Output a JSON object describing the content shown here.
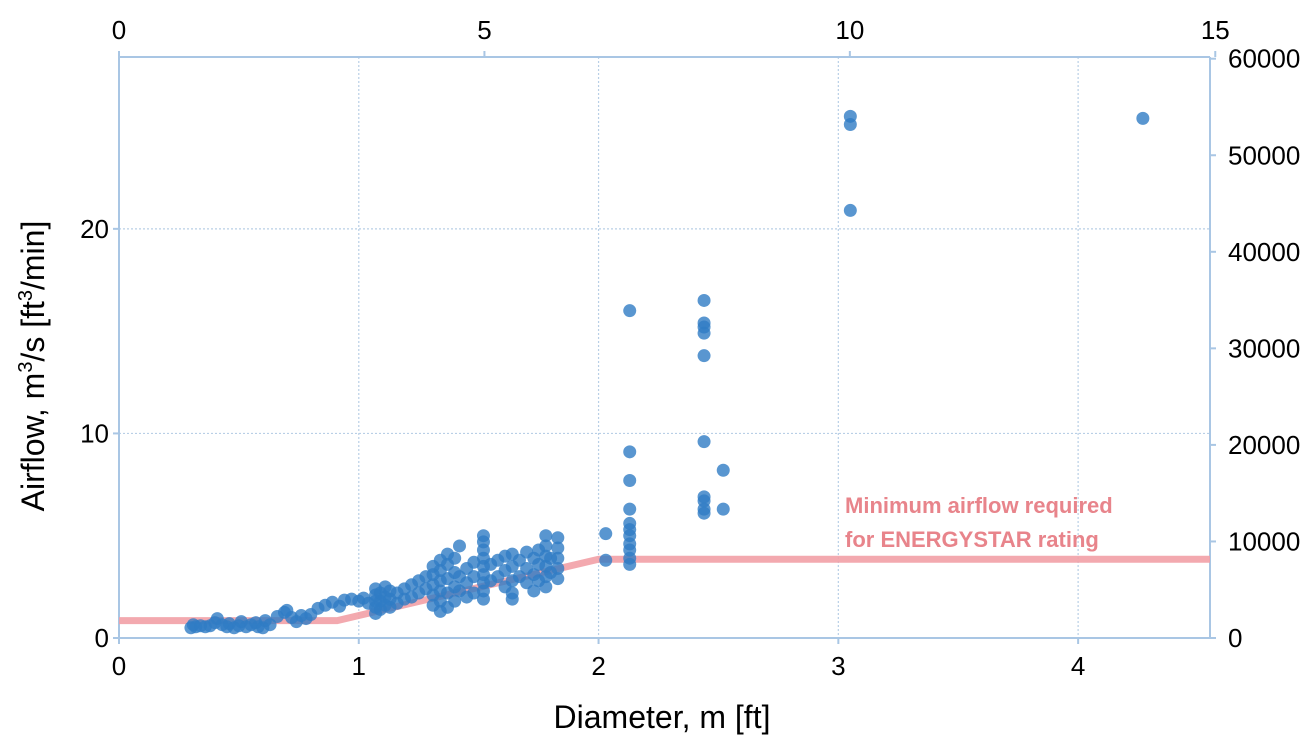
{
  "chart_data": {
    "type": "scatter",
    "xlabel": "Diameter, m [ft]",
    "ylabel_prefix": "Airflow, m",
    "ylabel_sup1": "3",
    "ylabel_mid": "/s [ft",
    "ylabel_sup2": "3",
    "ylabel_suffix": "/min]",
    "xlim": [
      0,
      4.55
    ],
    "ylim": [
      0,
      28.4
    ],
    "x_ticks": [
      "0",
      "1",
      "2",
      "3",
      "4"
    ],
    "x_tick_values": [
      0,
      1,
      2,
      3,
      4
    ],
    "y_ticks": [
      "0",
      "10",
      "20"
    ],
    "y_tick_values": [
      0,
      10,
      20
    ],
    "x2_ticks": [
      "0",
      "5",
      "10",
      "15"
    ],
    "x2_tick_values_ft": [
      0,
      5,
      10,
      15
    ],
    "y2_ticks": [
      "0",
      "10000",
      "20000",
      "30000",
      "40000",
      "50000",
      "60000"
    ],
    "y2_tick_values_cfm": [
      0,
      10000,
      20000,
      30000,
      40000,
      50000,
      60000
    ],
    "grid": true,
    "point_color": "#2f7cc4",
    "threshold_color": "#f2a0a6",
    "annotation_color": "#e8848b",
    "annotation_line1": "Minimum airflow required",
    "annotation_line2": "for ENERGYSTAR rating",
    "series": [
      {
        "type": "scatter",
        "points": [
          [
            0.3,
            0.5
          ],
          [
            0.31,
            0.65
          ],
          [
            0.32,
            0.55
          ],
          [
            0.34,
            0.6
          ],
          [
            0.36,
            0.55
          ],
          [
            0.38,
            0.6
          ],
          [
            0.4,
            0.75
          ],
          [
            0.41,
            0.95
          ],
          [
            0.43,
            0.65
          ],
          [
            0.45,
            0.55
          ],
          [
            0.46,
            0.7
          ],
          [
            0.48,
            0.5
          ],
          [
            0.5,
            0.6
          ],
          [
            0.51,
            0.8
          ],
          [
            0.53,
            0.55
          ],
          [
            0.55,
            0.65
          ],
          [
            0.57,
            0.75
          ],
          [
            0.58,
            0.55
          ],
          [
            0.6,
            0.5
          ],
          [
            0.61,
            0.85
          ],
          [
            0.63,
            0.65
          ],
          [
            0.66,
            1.05
          ],
          [
            0.69,
            1.25
          ],
          [
            0.7,
            1.35
          ],
          [
            0.72,
            1.0
          ],
          [
            0.74,
            0.8
          ],
          [
            0.76,
            1.1
          ],
          [
            0.78,
            0.95
          ],
          [
            0.8,
            1.15
          ],
          [
            0.83,
            1.45
          ],
          [
            0.86,
            1.6
          ],
          [
            0.89,
            1.75
          ],
          [
            0.92,
            1.55
          ],
          [
            0.94,
            1.85
          ],
          [
            0.97,
            1.9
          ],
          [
            1.0,
            1.8
          ],
          [
            1.02,
            1.95
          ],
          [
            1.04,
            1.7
          ],
          [
            1.07,
            1.2
          ],
          [
            1.07,
            1.5
          ],
          [
            1.07,
            1.8
          ],
          [
            1.07,
            2.1
          ],
          [
            1.07,
            2.4
          ],
          [
            1.09,
            1.4
          ],
          [
            1.09,
            1.8
          ],
          [
            1.09,
            2.2
          ],
          [
            1.11,
            1.6
          ],
          [
            1.11,
            2.0
          ],
          [
            1.11,
            2.5
          ],
          [
            1.13,
            1.5
          ],
          [
            1.13,
            1.9
          ],
          [
            1.13,
            2.3
          ],
          [
            1.16,
            1.7
          ],
          [
            1.16,
            2.2
          ],
          [
            1.19,
            1.9
          ],
          [
            1.19,
            2.4
          ],
          [
            1.22,
            2.0
          ],
          [
            1.22,
            2.6
          ],
          [
            1.25,
            2.2
          ],
          [
            1.25,
            2.8
          ],
          [
            1.28,
            2.4
          ],
          [
            1.28,
            3.0
          ],
          [
            1.31,
            1.6
          ],
          [
            1.31,
            2.1
          ],
          [
            1.31,
            2.6
          ],
          [
            1.31,
            3.1
          ],
          [
            1.31,
            3.5
          ],
          [
            1.34,
            1.3
          ],
          [
            1.34,
            1.8
          ],
          [
            1.34,
            2.3
          ],
          [
            1.34,
            2.8
          ],
          [
            1.34,
            3.3
          ],
          [
            1.34,
            3.8
          ],
          [
            1.37,
            1.5
          ],
          [
            1.37,
            2.2
          ],
          [
            1.37,
            2.9
          ],
          [
            1.37,
            3.6
          ],
          [
            1.37,
            4.1
          ],
          [
            1.4,
            1.8
          ],
          [
            1.4,
            2.5
          ],
          [
            1.4,
            3.2
          ],
          [
            1.4,
            3.9
          ],
          [
            1.42,
            2.3
          ],
          [
            1.42,
            3.0
          ],
          [
            1.42,
            4.5
          ],
          [
            1.45,
            2.0
          ],
          [
            1.45,
            2.7
          ],
          [
            1.45,
            3.4
          ],
          [
            1.48,
            2.2
          ],
          [
            1.48,
            3.0
          ],
          [
            1.48,
            3.7
          ],
          [
            1.52,
            1.9
          ],
          [
            1.52,
            2.3
          ],
          [
            1.52,
            2.7
          ],
          [
            1.52,
            3.1
          ],
          [
            1.52,
            3.5
          ],
          [
            1.52,
            3.9
          ],
          [
            1.52,
            4.3
          ],
          [
            1.52,
            4.7
          ],
          [
            1.52,
            5.0
          ],
          [
            1.55,
            2.8
          ],
          [
            1.55,
            3.6
          ],
          [
            1.58,
            3.0
          ],
          [
            1.58,
            3.8
          ],
          [
            1.61,
            2.5
          ],
          [
            1.61,
            3.3
          ],
          [
            1.61,
            4.0
          ],
          [
            1.64,
            1.9
          ],
          [
            1.64,
            2.2
          ],
          [
            1.64,
            2.8
          ],
          [
            1.64,
            3.5
          ],
          [
            1.64,
            4.1
          ],
          [
            1.67,
            3.0
          ],
          [
            1.67,
            3.8
          ],
          [
            1.7,
            2.7
          ],
          [
            1.7,
            3.4
          ],
          [
            1.7,
            4.2
          ],
          [
            1.73,
            2.3
          ],
          [
            1.73,
            3.1
          ],
          [
            1.73,
            3.9
          ],
          [
            1.75,
            2.8
          ],
          [
            1.75,
            3.6
          ],
          [
            1.75,
            4.3
          ],
          [
            1.78,
            2.5
          ],
          [
            1.78,
            3.0
          ],
          [
            1.78,
            3.5
          ],
          [
            1.78,
            4.0
          ],
          [
            1.78,
            4.5
          ],
          [
            1.78,
            5.0
          ],
          [
            1.8,
            3.2
          ],
          [
            1.8,
            3.9
          ],
          [
            1.83,
            2.9
          ],
          [
            1.83,
            3.4
          ],
          [
            1.83,
            3.9
          ],
          [
            1.83,
            4.4
          ],
          [
            1.83,
            4.9
          ],
          [
            2.03,
            3.8
          ],
          [
            2.03,
            5.1
          ],
          [
            2.13,
            3.6
          ],
          [
            2.13,
            3.9
          ],
          [
            2.13,
            4.3
          ],
          [
            2.13,
            4.6
          ],
          [
            2.13,
            5.0
          ],
          [
            2.13,
            5.3
          ],
          [
            2.13,
            5.6
          ],
          [
            2.13,
            6.3
          ],
          [
            2.13,
            7.7
          ],
          [
            2.13,
            9.1
          ],
          [
            2.13,
            16.0
          ],
          [
            2.44,
            6.1
          ],
          [
            2.44,
            6.3
          ],
          [
            2.44,
            6.7
          ],
          [
            2.44,
            6.9
          ],
          [
            2.44,
            9.6
          ],
          [
            2.44,
            13.8
          ],
          [
            2.44,
            14.9
          ],
          [
            2.44,
            15.2
          ],
          [
            2.44,
            15.4
          ],
          [
            2.44,
            16.5
          ],
          [
            2.52,
            6.3
          ],
          [
            2.52,
            8.2
          ],
          [
            3.05,
            20.9
          ],
          [
            3.05,
            25.1
          ],
          [
            3.05,
            25.5
          ],
          [
            4.27,
            25.4
          ]
        ]
      },
      {
        "type": "line",
        "name": "Minimum airflow required for ENERGYSTAR rating",
        "points": [
          [
            0,
            0.85
          ],
          [
            0.91,
            0.85
          ],
          [
            2.0,
            3.85
          ],
          [
            4.55,
            3.85
          ]
        ]
      }
    ]
  }
}
